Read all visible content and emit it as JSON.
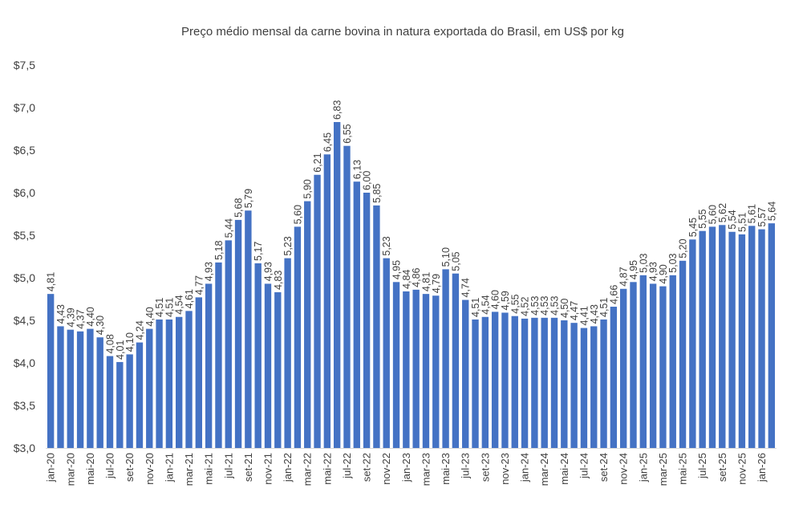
{
  "chart_data": {
    "type": "bar",
    "title": "Preço médio mensal da carne bovina in natura exportada do Brasil, em US$ por kg",
    "xlabel": "",
    "ylabel": "",
    "ylim": [
      3.0,
      7.5
    ],
    "yticks": [
      3.0,
      3.5,
      4.0,
      4.5,
      5.0,
      5.5,
      6.0,
      6.5,
      7.0,
      7.5
    ],
    "ytick_labels": [
      "$3,0",
      "$3,5",
      "$4,0",
      "$4,5",
      "$5,0",
      "$5,5",
      "$6,0",
      "$6,5",
      "$7,0",
      "$7,5"
    ],
    "bar_color": "#4472C4",
    "grid": false,
    "legend": "none",
    "categories": [
      "jan-20",
      "fev-20",
      "mar-20",
      "abr-20",
      "mai-20",
      "jun-20",
      "jul-20",
      "ago-20",
      "set-20",
      "out-20",
      "nov-20",
      "dez-20",
      "jan-21",
      "fev-21",
      "mar-21",
      "abr-21",
      "mai-21",
      "jun-21",
      "jul-21",
      "ago-21",
      "set-21",
      "out-21",
      "nov-21",
      "dez-21",
      "jan-22",
      "fev-22",
      "mar-22",
      "abr-22",
      "mai-22",
      "jun-22",
      "jul-22",
      "ago-22",
      "set-22",
      "out-22",
      "nov-22",
      "dez-22",
      "jan-23",
      "fev-23",
      "mar-23",
      "abr-23",
      "mai-23",
      "jun-23",
      "jul-23",
      "ago-23",
      "set-23",
      "out-23",
      "nov-23",
      "dez-23",
      "jan-24",
      "fev-24",
      "mar-24",
      "abr-24",
      "mai-24",
      "jun-24",
      "jul-24",
      "ago-24",
      "set-24",
      "out-24",
      "nov-24",
      "dez-24",
      "jan-25",
      "fev-25",
      "mar-25",
      "abr-25",
      "mai-25",
      "jun-25",
      "jul-25",
      "ago-25",
      "set-25",
      "out-25",
      "nov-25",
      "dez-25",
      "jan-26",
      "fev-26"
    ],
    "tick_labels": [
      "jan-20",
      "",
      "mar-20",
      "",
      "mai-20",
      "",
      "jul-20",
      "",
      "set-20",
      "",
      "nov-20",
      "",
      "jan-21",
      "",
      "mar-21",
      "",
      "mai-21",
      "",
      "jul-21",
      "",
      "set-21",
      "",
      "nov-21",
      "",
      "jan-22",
      "",
      "mar-22",
      "",
      "mai-22",
      "",
      "jul-22",
      "",
      "set-22",
      "",
      "nov-22",
      "",
      "jan-23",
      "",
      "mar-23",
      "",
      "mai-23",
      "",
      "jul-23",
      "",
      "set-23",
      "",
      "nov-23",
      "",
      "jan-24",
      "",
      "mar-24",
      "",
      "mai-24",
      "",
      "jul-24",
      "",
      "set-24",
      "",
      "nov-24",
      "",
      "jan-25",
      "",
      "mar-25",
      "",
      "mai-25",
      "",
      "jul-25",
      "",
      "set-25",
      "",
      "nov-25",
      "",
      "jan-26",
      ""
    ],
    "values": [
      4.81,
      4.43,
      4.39,
      4.37,
      4.4,
      4.3,
      4.08,
      4.01,
      4.1,
      4.24,
      4.4,
      4.51,
      4.51,
      4.54,
      4.61,
      4.77,
      4.93,
      5.18,
      5.44,
      5.68,
      5.79,
      5.17,
      4.93,
      4.83,
      5.23,
      5.6,
      5.9,
      6.21,
      6.45,
      6.83,
      6.55,
      6.13,
      6.0,
      5.85,
      5.23,
      4.95,
      4.84,
      4.86,
      4.81,
      4.79,
      5.1,
      5.05,
      4.74,
      4.51,
      4.54,
      4.6,
      4.59,
      4.55,
      4.52,
      4.53,
      4.53,
      4.53,
      4.5,
      4.47,
      4.41,
      4.43,
      4.51,
      4.66,
      4.87,
      4.95,
      5.03,
      4.93,
      4.9,
      5.03,
      5.2,
      5.45,
      5.55,
      5.6,
      5.62,
      5.54,
      5.51,
      5.61,
      5.57,
      5.64
    ],
    "value_labels": [
      "4,81",
      "4,43",
      "4,39",
      "4,37",
      "4,40",
      "4,30",
      "4,08",
      "4,01",
      "4,10",
      "4,24",
      "4,40",
      "4,51",
      "4,51",
      "4,54",
      "4,61",
      "4,77",
      "4,93",
      "5,18",
      "5,44",
      "5,68",
      "5,79",
      "5,17",
      "4,93",
      "4,83",
      "5,23",
      "5,60",
      "5,90",
      "6,21",
      "6,45",
      "6,83",
      "6,55",
      "6,13",
      "6,00",
      "5,85",
      "5,23",
      "4,95",
      "4,84",
      "4,86",
      "4,81",
      "4,79",
      "5,10",
      "5,05",
      "4,74",
      "4,51",
      "4,54",
      "4,60",
      "4,59",
      "4,55",
      "4,52",
      "4,53",
      "4,53",
      "4,53",
      "4,50",
      "4,47",
      "4,41",
      "4,43",
      "4,51",
      "4,66",
      "4,87",
      "4,95",
      "5,03",
      "4,93",
      "4,90",
      "5,03",
      "5,20",
      "5,45",
      "5,55",
      "5,60",
      "5,62",
      "5,54",
      "5,51",
      "5,61",
      "5,57",
      "5,64"
    ]
  }
}
